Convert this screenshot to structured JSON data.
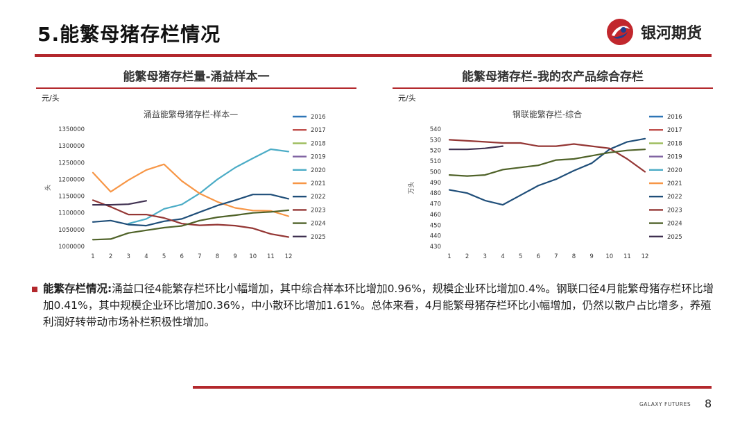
{
  "header": {
    "title": "5.能繁母猪存栏情况",
    "logo_text": "银河期货"
  },
  "left_panel": {
    "title": "能繁母猪存栏量-涌益样本一",
    "unit": "元/头"
  },
  "right_panel": {
    "title": "能繁母猪存栏-我的农产品综合存栏",
    "unit": "元/头"
  },
  "chart_data": [
    {
      "type": "line",
      "title": "涌益能繁母猪存栏-样本一",
      "ylabel": "头",
      "xlabel": "",
      "x": [
        1,
        2,
        3,
        4,
        5,
        6,
        7,
        8,
        9,
        10,
        11,
        12
      ],
      "ylim": [
        1000000,
        1350000
      ],
      "yticks": [
        1000000,
        1050000,
        1100000,
        1150000,
        1200000,
        1250000,
        1300000,
        1350000
      ],
      "ytick_labels": [
        "1000000",
        "1050000",
        "1100000",
        "1150000",
        "1200000",
        "1250000",
        "1300000",
        "1350000"
      ],
      "grid": false,
      "legend": "right",
      "series": [
        {
          "name": "2016",
          "color": "#2e75b6",
          "values": [
            null,
            null,
            null,
            null,
            null,
            null,
            null,
            null,
            null,
            null,
            null,
            null
          ]
        },
        {
          "name": "2017",
          "color": "#c0504d",
          "values": [
            null,
            null,
            null,
            null,
            null,
            null,
            null,
            null,
            null,
            null,
            null,
            null
          ]
        },
        {
          "name": "2018",
          "color": "#9bbb59",
          "values": [
            null,
            null,
            null,
            null,
            null,
            null,
            null,
            null,
            null,
            null,
            null,
            null
          ]
        },
        {
          "name": "2019",
          "color": "#8064a2",
          "values": [
            null,
            null,
            null,
            null,
            null,
            null,
            null,
            null,
            null,
            null,
            null,
            null
          ]
        },
        {
          "name": "2020",
          "color": "#4bacc6",
          "values": [
            null,
            null,
            1068000,
            1082000,
            1112000,
            1125000,
            1158000,
            1200000,
            1235000,
            1263000,
            1290000,
            1283000
          ]
        },
        {
          "name": "2021",
          "color": "#f79646",
          "values": [
            1220000,
            1163000,
            1198000,
            1228000,
            1245000,
            1195000,
            1158000,
            1133000,
            1115000,
            1107000,
            1106000,
            1090000
          ]
        },
        {
          "name": "2022",
          "color": "#1f4e79",
          "values": [
            1073000,
            1077000,
            1065000,
            1062000,
            1075000,
            1082000,
            1102000,
            1122000,
            1138000,
            1155000,
            1155000,
            1142000
          ]
        },
        {
          "name": "2023",
          "color": "#943634",
          "values": [
            1138000,
            1118000,
            1095000,
            1095000,
            1085000,
            1068000,
            1063000,
            1065000,
            1062000,
            1054000,
            1037000,
            1028000
          ]
        },
        {
          "name": "2024",
          "color": "#4f6228",
          "values": [
            1020000,
            1022000,
            1040000,
            1048000,
            1056000,
            1061000,
            1077000,
            1087000,
            1093000,
            1100000,
            1103000,
            1108000
          ]
        },
        {
          "name": "2025",
          "color": "#403151",
          "values": [
            1124000,
            1124000,
            1126000,
            1136000,
            null,
            null,
            null,
            null,
            null,
            null,
            null,
            null
          ]
        }
      ]
    },
    {
      "type": "line",
      "title": "钢联能繁存栏-综合",
      "ylabel": "万头",
      "xlabel": "",
      "x": [
        1,
        2,
        3,
        4,
        5,
        6,
        7,
        8,
        9,
        10,
        11,
        12
      ],
      "ylim": [
        430,
        540
      ],
      "yticks": [
        430,
        440,
        450,
        460,
        470,
        480,
        490,
        500,
        510,
        520,
        530,
        540
      ],
      "ytick_labels": [
        "430",
        "440",
        "450",
        "460",
        "470",
        "480",
        "490",
        "500",
        "510",
        "520",
        "530",
        "540"
      ],
      "grid": false,
      "legend": "right",
      "series": [
        {
          "name": "2016",
          "color": "#2e75b6",
          "values": [
            null,
            null,
            null,
            null,
            null,
            null,
            null,
            null,
            null,
            null,
            null,
            null
          ]
        },
        {
          "name": "2017",
          "color": "#c0504d",
          "values": [
            null,
            null,
            null,
            null,
            null,
            null,
            null,
            null,
            null,
            null,
            null,
            null
          ]
        },
        {
          "name": "2018",
          "color": "#9bbb59",
          "values": [
            null,
            null,
            null,
            null,
            null,
            null,
            null,
            null,
            null,
            null,
            null,
            null
          ]
        },
        {
          "name": "2019",
          "color": "#8064a2",
          "values": [
            null,
            null,
            null,
            null,
            null,
            null,
            null,
            null,
            null,
            null,
            null,
            null
          ]
        },
        {
          "name": "2020",
          "color": "#4bacc6",
          "values": [
            null,
            null,
            null,
            null,
            null,
            null,
            null,
            null,
            null,
            null,
            null,
            null
          ]
        },
        {
          "name": "2021",
          "color": "#f79646",
          "values": [
            null,
            null,
            null,
            null,
            null,
            null,
            null,
            null,
            null,
            null,
            null,
            null
          ]
        },
        {
          "name": "2022",
          "color": "#1f4e79",
          "values": [
            483,
            480,
            473,
            469,
            478,
            487,
            493,
            501,
            508,
            521,
            528,
            531
          ]
        },
        {
          "name": "2023",
          "color": "#943634",
          "values": [
            530,
            529,
            528,
            527,
            527,
            524,
            524,
            526,
            524,
            522,
            512,
            500
          ]
        },
        {
          "name": "2024",
          "color": "#4f6228",
          "values": [
            497,
            496,
            497,
            502,
            504,
            506,
            511,
            512,
            515,
            518,
            520,
            521
          ]
        },
        {
          "name": "2025",
          "color": "#403151",
          "values": [
            521,
            521,
            522,
            524,
            null,
            null,
            null,
            null,
            null,
            null,
            null,
            null
          ]
        }
      ]
    }
  ],
  "summary": {
    "label": "能繁存栏情况:",
    "text": "涌益口径4能繁存栏环比小幅增加，其中综合样本环比增加0.96%，规模企业环比增加0.4%。钢联口径4月能繁母猪存栏环比增加0.41%，其中规模企业环比增加0.36%，中小散环比增加1.61%。总体来看，4月能繁母猪存栏环比小幅增加，仍然以散户占比增多，养殖利润好转带动市场补栏积极性增加。"
  },
  "footer": {
    "brand": "GALAXY FUTURES",
    "page": "8"
  },
  "colors": {
    "accent": "#b3282d"
  },
  "icons": {
    "logo": "galaxy-futures-logo-icon",
    "bullet": "square-bullet-icon"
  }
}
